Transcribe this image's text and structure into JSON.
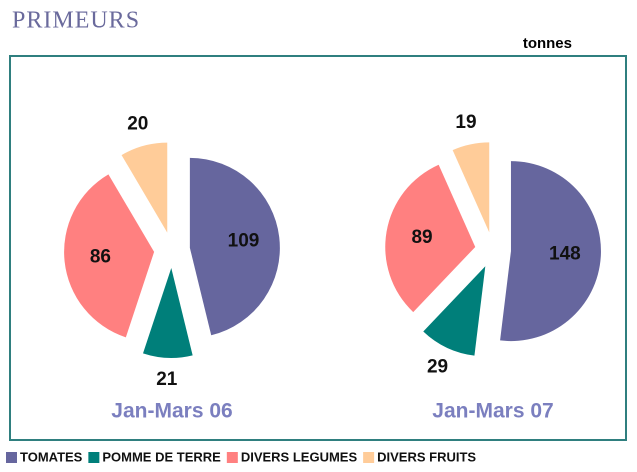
{
  "title": "PRIMEURS",
  "unit": "tonnes",
  "categories": [
    "TOMATES",
    "POMME DE TERRE",
    "DIVERS LEGUMES",
    "DIVERS FRUITS"
  ],
  "colors": [
    "#66669e",
    "#007f7a",
    "#ff8080",
    "#ffcc99"
  ],
  "chart_data": [
    {
      "type": "pie",
      "title": "Jan-Mars 06",
      "values": [
        109,
        21,
        86,
        20
      ]
    },
    {
      "type": "pie",
      "title": "Jan-Mars 07",
      "values": [
        148,
        29,
        89,
        19
      ]
    }
  ]
}
